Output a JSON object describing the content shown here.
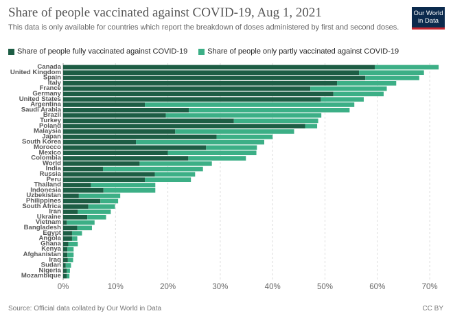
{
  "title": "Share of people vaccinated against COVID-19, Aug 1, 2021",
  "subtitle": "This data is only available for countries which report the breakdown of doses administered by first and second doses.",
  "logo": {
    "line1": "Our World",
    "line2": "in Data",
    "bg": "#0b2a4d",
    "accent": "#c3262f"
  },
  "footer": {
    "source": "Source: Official data collated by Our World in Data",
    "license": "CC BY"
  },
  "colors": {
    "full": "#1d5d44",
    "partial": "#3caf86"
  },
  "chart_data": {
    "type": "bar",
    "orientation": "horizontal",
    "stacked": true,
    "title": "Share of people vaccinated against COVID-19, Aug 1, 2021",
    "x_ticks": [
      "0%",
      "10%",
      "20%",
      "30%",
      "40%",
      "50%",
      "60%",
      "70%"
    ],
    "xlim": [
      0,
      72
    ],
    "grid": "vertical dashed",
    "legend_position": "top-left",
    "categories": [
      "Canada",
      "United Kingdom",
      "Spain",
      "Italy",
      "France",
      "Germany",
      "United States",
      "Argentina",
      "Saudi Arabia",
      "Brazil",
      "Turkey",
      "Poland",
      "Malaysia",
      "Japan",
      "South Korea",
      "Morocco",
      "Mexico",
      "Colombia",
      "World",
      "India",
      "Russia",
      "Peru",
      "Thailand",
      "Indonesia",
      "Uzbekistan",
      "Philippines",
      "South Africa",
      "Iran",
      "Ukraine",
      "Vietnam",
      "Bangladesh",
      "Egypt",
      "Angola",
      "Ghana",
      "Kenya",
      "Afghanistan",
      "Iraq",
      "Sudan",
      "Nigeria",
      "Mozambique"
    ],
    "series": [
      {
        "name": "Share of people fully vaccinated against COVID-19",
        "values": [
          59.5,
          56.5,
          57.7,
          52.3,
          47.2,
          51.6,
          49.2,
          15.6,
          24.0,
          19.6,
          32.6,
          46.2,
          21.4,
          29.3,
          13.9,
          27.3,
          20.0,
          23.9,
          14.6,
          7.6,
          17.5,
          15.6,
          5.3,
          7.7,
          3.0,
          7.1,
          4.8,
          2.8,
          4.6,
          0.7,
          2.7,
          1.7,
          1.7,
          1.0,
          0.8,
          0.8,
          0.9,
          0.5,
          0.7,
          0.7
        ]
      },
      {
        "name": "Share of people only partly vaccinated against COVID-19",
        "values": [
          12.2,
          12.4,
          10.3,
          11.3,
          14.6,
          9.6,
          8.2,
          40.0,
          30.7,
          29.7,
          16.1,
          2.3,
          22.7,
          10.7,
          24.5,
          9.7,
          16.9,
          11.0,
          13.8,
          19.1,
          7.7,
          8.8,
          12.3,
          9.9,
          7.9,
          3.4,
          5.1,
          6.3,
          3.6,
          5.3,
          2.8,
          1.9,
          1.0,
          1.8,
          1.2,
          1.2,
          1.0,
          1.0,
          0.6,
          0.5
        ]
      }
    ]
  }
}
